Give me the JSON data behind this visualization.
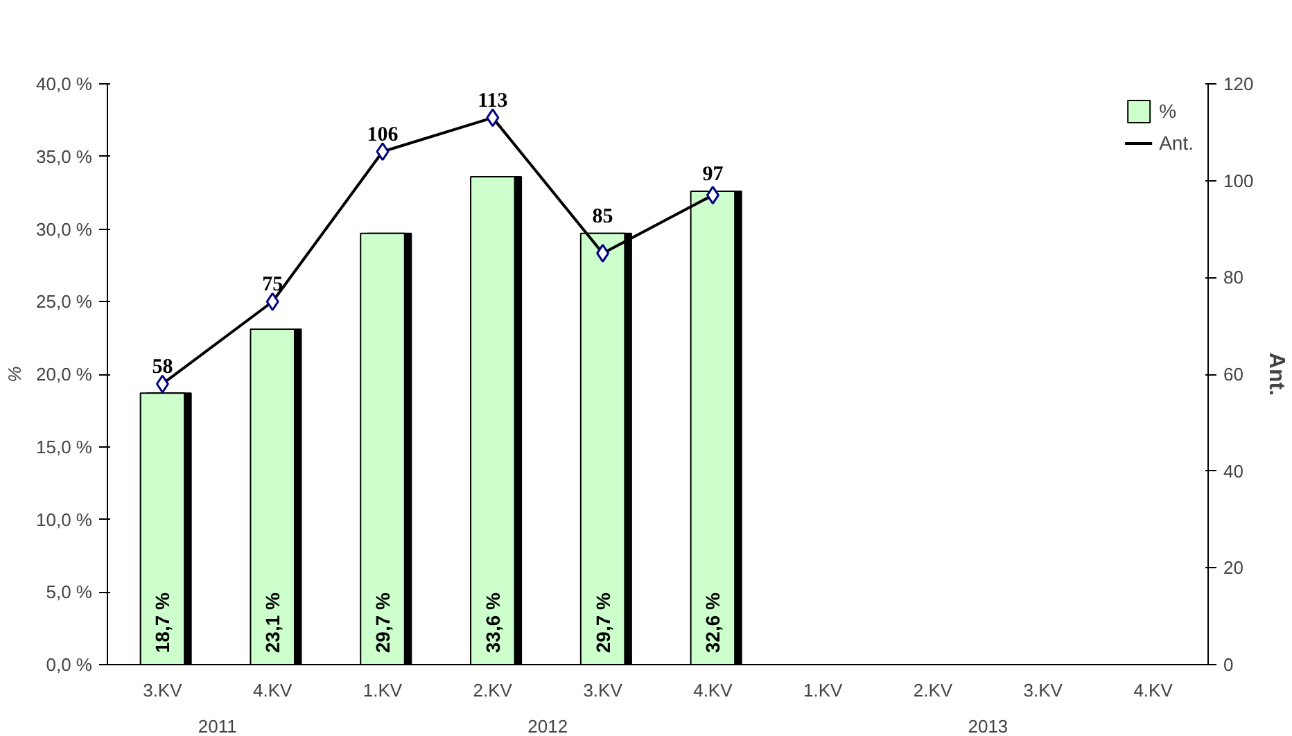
{
  "chart_data": {
    "type": "bar",
    "ylabel": "%",
    "y2label": "Ant.",
    "categories": [
      "3.KV",
      "4.KV",
      "1.KV",
      "2.KV",
      "3.KV",
      "4.KV",
      "1.KV",
      "2.KV",
      "3.KV",
      "4.KV"
    ],
    "annotations": [
      "2011",
      "2012",
      "2013"
    ],
    "series": [
      {
        "name": "%",
        "color": "#ccffcc",
        "values": [
          18.7,
          23.1,
          29.7,
          33.6,
          29.7,
          32.6,
          null,
          null,
          null,
          null
        ],
        "value_labels": [
          "18,7 %",
          "23,1 %",
          "29,7 %",
          "33,6 %",
          "29,7 %",
          "32,6 %",
          null,
          null,
          null,
          null
        ]
      },
      {
        "name": "Ant.",
        "type": "line",
        "axis": "y2",
        "color": "#000000",
        "values": [
          58,
          75,
          106,
          113,
          85,
          97,
          null,
          null,
          null,
          null
        ],
        "value_labels": [
          "58",
          "75",
          "106",
          "113",
          "85",
          "97",
          null,
          null,
          null,
          null
        ]
      }
    ],
    "ylim": [
      0,
      40
    ],
    "yticks": [
      {
        "value": 0,
        "label": "0,0 %"
      },
      {
        "value": 5,
        "label": "5,0 %"
      },
      {
        "value": 10,
        "label": "10,0 %"
      },
      {
        "value": 15,
        "label": "15,0 %"
      },
      {
        "value": 20,
        "label": "20,0 %"
      },
      {
        "value": 25,
        "label": "25,0 %"
      },
      {
        "value": 30,
        "label": "30,0 %"
      },
      {
        "value": 35,
        "label": "35,0 %"
      },
      {
        "value": 40,
        "label": "40,0 %"
      }
    ],
    "y2lim": [
      0,
      120
    ],
    "y2ticks": [
      0,
      20,
      40,
      60,
      80,
      100,
      120
    ],
    "marker": "diamond",
    "grid": false,
    "legend": "top right"
  }
}
